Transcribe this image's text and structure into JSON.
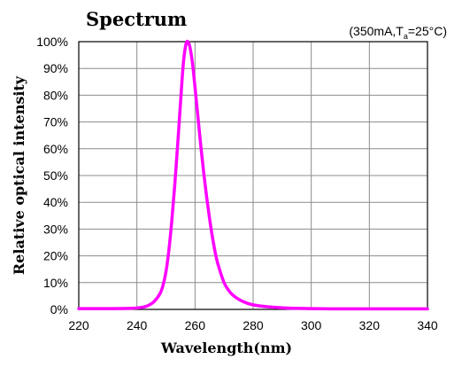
{
  "chart_data": {
    "type": "line",
    "title": "Spectrum",
    "condition": {
      "prefix": "(350mA,T",
      "subscript": "a",
      "suffix": "=25°C)"
    },
    "xlabel": "Wavelength(nm)",
    "ylabel": "Relative optical intensity",
    "xlim": [
      220,
      340
    ],
    "ylim": [
      0,
      100
    ],
    "xticks": [
      "220",
      "240",
      "260",
      "280",
      "300",
      "320",
      "340"
    ],
    "yticks": [
      "0%",
      "10%",
      "20%",
      "30%",
      "40%",
      "50%",
      "60%",
      "70%",
      "80%",
      "90%",
      "100%"
    ],
    "grid": true,
    "series": [
      {
        "color": "#ff00ff",
        "x": [
          220,
          230,
          238,
          242,
          244,
          246,
          248,
          249,
          250,
          251,
          252,
          253,
          254,
          255,
          256,
          257,
          258,
          259,
          260,
          261,
          262,
          263,
          264,
          265,
          266,
          267,
          268,
          270,
          272,
          274,
          276,
          278,
          280,
          283,
          286,
          290,
          295,
          300,
          310,
          320,
          330,
          340
        ],
        "y": [
          0.3,
          0.3,
          0.4,
          0.8,
          1.5,
          3,
          6,
          9,
          14,
          22,
          33,
          46,
          61,
          77,
          92,
          99.5,
          99,
          93,
          83,
          72,
          61,
          51,
          42,
          34,
          27,
          21,
          16.5,
          10,
          6.5,
          4.5,
          3.2,
          2.3,
          1.7,
          1.2,
          0.9,
          0.6,
          0.4,
          0.3,
          0.2,
          0.2,
          0.2,
          0.2
        ]
      }
    ]
  }
}
